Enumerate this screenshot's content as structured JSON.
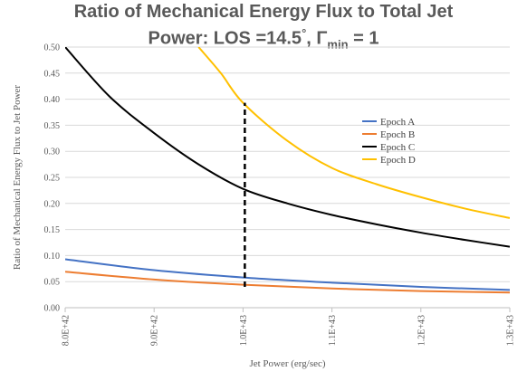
{
  "chart_data": {
    "type": "line",
    "title_line1": "Ratio of Mechanical Energy Flux to Total Jet",
    "title_line2_prefix": "Power: LOS =14.5",
    "title_degree": "°",
    "title_gamma": ", Γ",
    "title_sub": "min",
    "title_suffix": " = 1",
    "xlabel": "Jet Power (erg/sec)",
    "ylabel": "Ratio of Mechanical Energy Flux to Jet Power",
    "xlim": [
      8e+42,
      1.3e+43
    ],
    "ylim": [
      0,
      0.5
    ],
    "x_ticks": [
      {
        "value": 8e+42,
        "label": "8.0E+42"
      },
      {
        "value": 9e+42,
        "label": "9.0E+42"
      },
      {
        "value": 1e+43,
        "label": "1.0E+43"
      },
      {
        "value": 1.1e+43,
        "label": "1.1E+43"
      },
      {
        "value": 1.2e+43,
        "label": "1.2E+43"
      },
      {
        "value": 1.3e+43,
        "label": "1.3E+43"
      }
    ],
    "y_ticks": [
      {
        "value": 0.0,
        "label": "0.00"
      },
      {
        "value": 0.05,
        "label": "0.05"
      },
      {
        "value": 0.1,
        "label": "0.10"
      },
      {
        "value": 0.15,
        "label": "0.15"
      },
      {
        "value": 0.2,
        "label": "0.20"
      },
      {
        "value": 0.25,
        "label": "0.25"
      },
      {
        "value": 0.3,
        "label": "0.30"
      },
      {
        "value": 0.35,
        "label": "0.35"
      },
      {
        "value": 0.4,
        "label": "0.40"
      },
      {
        "value": 0.45,
        "label": "0.45"
      },
      {
        "value": 0.5,
        "label": "0.50"
      }
    ],
    "grid": "horizontal",
    "legend_position": "right",
    "series": [
      {
        "name": "Epoch A",
        "color": "#4472C4",
        "x": [
          8e+42,
          9e+42,
          1e+43,
          1.1e+43,
          1.2e+43,
          1.3e+43
        ],
        "y": [
          0.093,
          0.072,
          0.058,
          0.048,
          0.04,
          0.034
        ]
      },
      {
        "name": "Epoch B",
        "color": "#ED7D31",
        "x": [
          8e+42,
          9e+42,
          1e+43,
          1.1e+43,
          1.2e+43,
          1.3e+43
        ],
        "y": [
          0.069,
          0.054,
          0.044,
          0.037,
          0.032,
          0.029
        ]
      },
      {
        "name": "Epoch C",
        "color": "#000000",
        "x": [
          8e+42,
          8.5e+42,
          9e+42,
          9.5e+42,
          1e+43,
          1.05e+43,
          1.1e+43,
          1.15e+43,
          1.2e+43,
          1.25e+43,
          1.3e+43
        ],
        "y": [
          0.5,
          0.405,
          0.335,
          0.275,
          0.228,
          0.2,
          0.178,
          0.16,
          0.144,
          0.13,
          0.117
        ]
      },
      {
        "name": "Epoch D",
        "color": "#FFC000",
        "x": [
          9.5e+42,
          9.75e+42,
          1e+43,
          1.05e+43,
          1.1e+43,
          1.15e+43,
          1.2e+43,
          1.25e+43,
          1.3e+43
        ],
        "y": [
          0.5,
          0.45,
          0.393,
          0.32,
          0.268,
          0.237,
          0.212,
          0.19,
          0.172
        ]
      }
    ],
    "annotation": {
      "type": "dashed-vertical-line",
      "color": "#000000",
      "x": 1.002e+43,
      "y_from": 0.04,
      "y_to": 0.393
    }
  }
}
